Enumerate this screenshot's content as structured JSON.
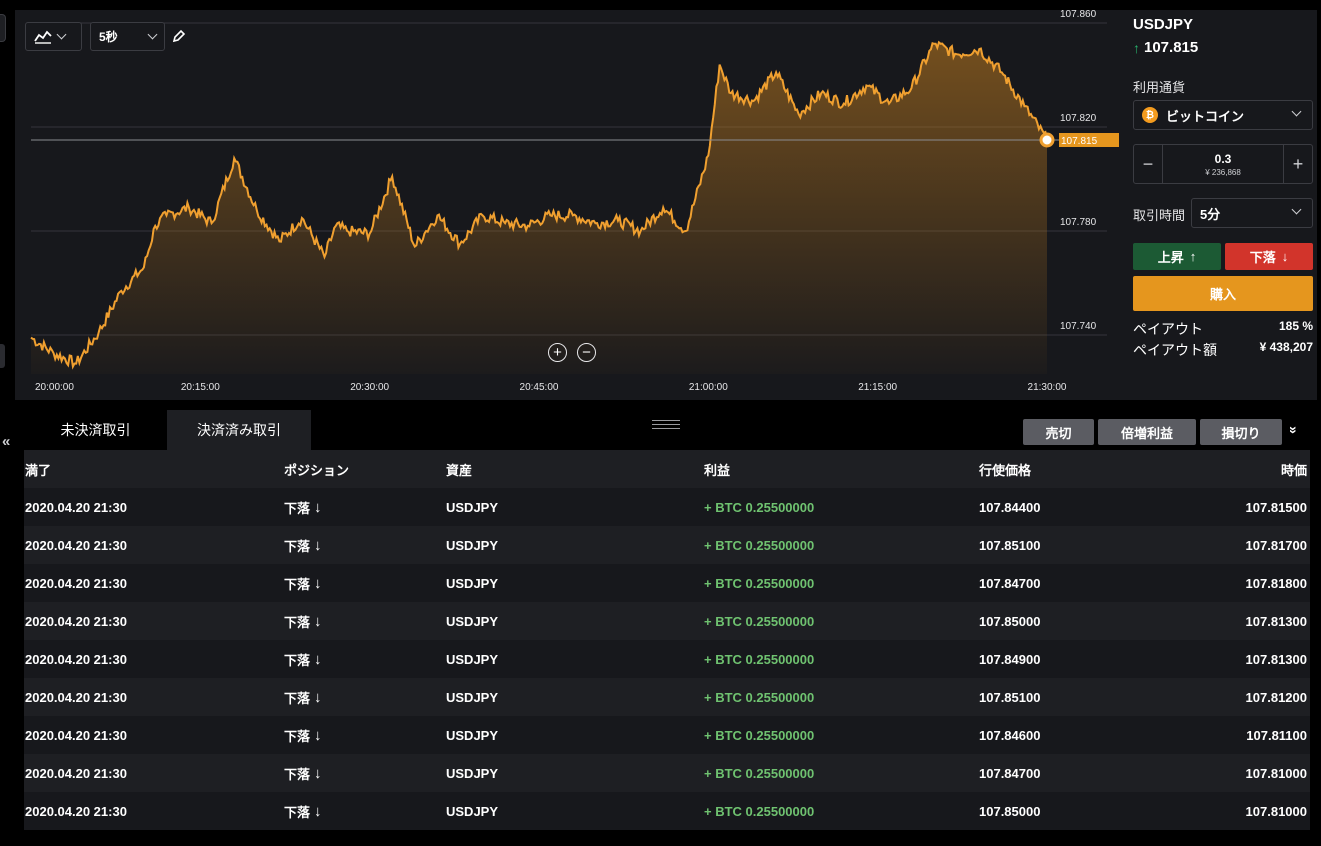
{
  "chart": {
    "type_selector_icon": "line-chart-icon",
    "interval_label": "5秒",
    "pencil_icon": "pencil-icon",
    "y_ticks": [
      "107.860",
      "107.820",
      "107.780",
      "107.740"
    ],
    "x_ticks": [
      "20:00:00",
      "20:15:00",
      "20:30:00",
      "20:45:00",
      "21:00:00",
      "21:15:00",
      "21:30:00"
    ],
    "current_price_tag": "107.815",
    "line_color": "#f0a030",
    "ylim": [
      107.725,
      107.865
    ]
  },
  "chart_data": {
    "type": "area",
    "title": "",
    "xlabel": "",
    "ylabel": "",
    "x_range": [
      "20:00:00",
      "21:30:00"
    ],
    "ylim": [
      107.725,
      107.865
    ],
    "series": [
      {
        "x": [
          "20:00",
          "20:02",
          "20:04",
          "20:06",
          "20:08",
          "20:10",
          "20:11",
          "20:12",
          "20:14",
          "20:16",
          "20:18",
          "20:20",
          "20:22",
          "20:24",
          "20:26",
          "20:27",
          "20:28",
          "20:30",
          "20:32",
          "20:34",
          "20:35",
          "20:36",
          "20:38",
          "20:40",
          "20:42",
          "20:44",
          "20:46",
          "20:48",
          "20:50",
          "20:52",
          "20:54",
          "20:56",
          "20:58",
          "21:00",
          "21:01",
          "21:02",
          "21:04",
          "21:06",
          "21:08",
          "21:10",
          "21:12",
          "21:14",
          "21:16",
          "21:18",
          "21:20",
          "21:22",
          "21:24",
          "21:26",
          "21:28",
          "21:30"
        ],
        "values": [
          107.739,
          107.733,
          107.729,
          107.741,
          107.757,
          107.766,
          107.782,
          107.786,
          107.789,
          107.783,
          107.808,
          107.788,
          107.776,
          107.785,
          107.77,
          107.782,
          107.78,
          107.779,
          107.801,
          107.774,
          107.78,
          107.786,
          107.775,
          107.786,
          107.783,
          107.782,
          107.786,
          107.786,
          107.783,
          107.784,
          107.78,
          107.789,
          107.78,
          107.809,
          107.844,
          107.833,
          107.83,
          107.841,
          107.825,
          107.833,
          107.829,
          107.836,
          107.829,
          107.835,
          107.852,
          107.848,
          107.85,
          107.841,
          107.828,
          107.815
        ]
      }
    ],
    "grid": true,
    "legend": "none"
  },
  "zoom": {
    "in_icon": "zoom-in-icon",
    "out_icon": "zoom-out-icon"
  },
  "panel": {
    "symbol": "USDJPY",
    "price": "107.815",
    "currency_label": "利用通貨",
    "currency_value": "ビットコイン",
    "coin_glyph": "₿",
    "amount": "0.3",
    "amount_yen": "¥ 236,868",
    "minus": "−",
    "plus": "+",
    "duration_label": "取引時間",
    "duration_value": "5分",
    "up_label": "上昇",
    "down_label": "下落",
    "buy_label": "購入",
    "payout_label": "ペイアウト",
    "payout_value": "185 %",
    "payout_amount_label": "ペイアウト額",
    "payout_amount_value": "¥ 438,207"
  },
  "bottom": {
    "tab_open": "未決済取引",
    "tab_closed": "決済済み取引",
    "btn_sell": "売切",
    "btn_double": "倍増利益",
    "btn_stop": "損切り",
    "collapse_glyph": "«",
    "expand_glyph": "»"
  },
  "table": {
    "headers": [
      "満了",
      "ポジション",
      "資産",
      "利益",
      "行使価格",
      "時価"
    ],
    "rows": [
      [
        "2020.04.20 21:30",
        "下落",
        "USDJPY",
        "+ BTC 0.25500000",
        "107.84400",
        "107.81500"
      ],
      [
        "2020.04.20 21:30",
        "下落",
        "USDJPY",
        "+ BTC 0.25500000",
        "107.85100",
        "107.81700"
      ],
      [
        "2020.04.20 21:30",
        "下落",
        "USDJPY",
        "+ BTC 0.25500000",
        "107.84700",
        "107.81800"
      ],
      [
        "2020.04.20 21:30",
        "下落",
        "USDJPY",
        "+ BTC 0.25500000",
        "107.85000",
        "107.81300"
      ],
      [
        "2020.04.20 21:30",
        "下落",
        "USDJPY",
        "+ BTC 0.25500000",
        "107.84900",
        "107.81300"
      ],
      [
        "2020.04.20 21:30",
        "下落",
        "USDJPY",
        "+ BTC 0.25500000",
        "107.85100",
        "107.81200"
      ],
      [
        "2020.04.20 21:30",
        "下落",
        "USDJPY",
        "+ BTC 0.25500000",
        "107.84600",
        "107.81100"
      ],
      [
        "2020.04.20 21:30",
        "下落",
        "USDJPY",
        "+ BTC 0.25500000",
        "107.84700",
        "107.81000"
      ],
      [
        "2020.04.20 21:30",
        "下落",
        "USDJPY",
        "+ BTC 0.25500000",
        "107.85000",
        "107.81000"
      ]
    ]
  }
}
